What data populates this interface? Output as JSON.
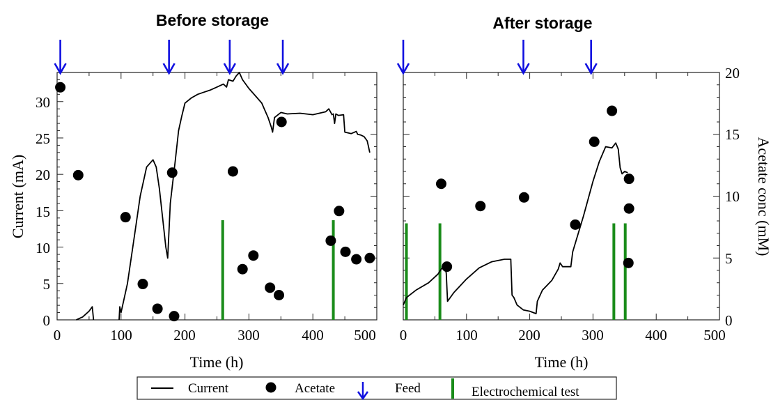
{
  "chart_data": [
    {
      "type": "line",
      "title": "Before storage",
      "xlabel": "Time (h)",
      "ylabel": "Current (mA)",
      "xlim": [
        0,
        500
      ],
      "ylim": [
        0,
        34
      ],
      "y2lim": [
        0,
        20
      ],
      "x_ticks": [
        "0",
        "100",
        "200",
        "300",
        "400",
        "500"
      ],
      "y_ticks": [
        "0",
        "5",
        "10",
        "15",
        "20",
        "25",
        "30"
      ],
      "series": [
        {
          "name": "Current",
          "kind": "line",
          "axis": "left",
          "color": "#000000",
          "segments": [
            [
              [
                30,
                0
              ],
              [
                40,
                0.4
              ],
              [
                50,
                1.2
              ],
              [
                55,
                1.8
              ],
              [
                57,
                0
              ]
            ],
            [
              [
                97,
                0
              ],
              [
                98,
                1.8
              ],
              [
                100,
                1
              ],
              [
                110,
                5
              ],
              [
                120,
                11
              ],
              [
                130,
                17
              ],
              [
                140,
                21
              ],
              [
                150,
                22
              ],
              [
                155,
                21
              ],
              [
                160,
                18
              ],
              [
                165,
                14
              ],
              [
                170,
                10
              ],
              [
                173,
                8.5
              ],
              [
                177,
                16
              ],
              [
                185,
                22
              ],
              [
                190,
                26
              ],
              [
                195,
                28
              ],
              [
                200,
                29.8
              ],
              [
                210,
                30.5
              ],
              [
                220,
                31
              ],
              [
                230,
                31.3
              ],
              [
                240,
                31.6
              ],
              [
                250,
                32
              ],
              [
                260,
                32.4
              ],
              [
                265,
                32
              ],
              [
                268,
                33
              ],
              [
                275,
                32.8
              ],
              [
                280,
                33.5
              ],
              [
                285,
                34
              ],
              [
                290,
                33
              ],
              [
                300,
                31.8
              ],
              [
                310,
                30.8
              ],
              [
                320,
                29.8
              ],
              [
                330,
                27.8
              ],
              [
                335,
                26.5
              ],
              [
                337,
                25.8
              ],
              [
                340,
                27.8
              ],
              [
                350,
                28.5
              ],
              [
                360,
                28.3
              ],
              [
                380,
                28.4
              ],
              [
                400,
                28.2
              ],
              [
                420,
                28.6
              ],
              [
                425,
                29
              ],
              [
                430,
                28.2
              ],
              [
                432,
                28.3
              ],
              [
                434,
                27
              ],
              [
                436,
                28.3
              ],
              [
                440,
                28.1
              ],
              [
                448,
                28.2
              ],
              [
                450,
                25.8
              ],
              [
                460,
                25.6
              ],
              [
                468,
                25.9
              ],
              [
                470,
                25.5
              ],
              [
                475,
                25.4
              ],
              [
                480,
                25.2
              ],
              [
                485,
                24.6
              ],
              [
                487,
                23.8
              ],
              [
                489,
                23
              ]
            ]
          ]
        },
        {
          "name": "Acetate",
          "kind": "scatter",
          "axis": "right",
          "color": "#000000",
          "points": [
            [
              5,
              18.8
            ],
            [
              33,
              11.7
            ],
            [
              107,
              8.3
            ],
            [
              134,
              2.9
            ],
            [
              157,
              0.9
            ],
            [
              183,
              0.3
            ],
            [
              180,
              11.9
            ],
            [
              275,
              12
            ],
            [
              290,
              4.1
            ],
            [
              307,
              5.2
            ],
            [
              333,
              2.6
            ],
            [
              347,
              2
            ],
            [
              351,
              16
            ],
            [
              428,
              6.4
            ],
            [
              441,
              8.8
            ],
            [
              451,
              5.5
            ],
            [
              468,
              4.9
            ],
            [
              489,
              5
            ]
          ]
        },
        {
          "name": "Feed",
          "kind": "arrow",
          "color": "#1010e0",
          "x": [
            5,
            175,
            270,
            353
          ]
        },
        {
          "name": "Electrochemical test",
          "kind": "vline",
          "color": "#1a8c1a",
          "x": [
            259,
            432
          ],
          "height": 13.7
        }
      ]
    },
    {
      "type": "line",
      "title": "After storage",
      "xlabel": "Time (h)",
      "ylabel": "Acetate conc (mM)",
      "xlim": [
        0,
        500
      ],
      "ylim": [
        0,
        20
      ],
      "y2lim": [
        0,
        20
      ],
      "x_ticks": [
        "0",
        "100",
        "200",
        "300",
        "400",
        "500"
      ],
      "y2_ticks": [
        "0",
        "5",
        "10",
        "15",
        "20"
      ],
      "series": [
        {
          "name": "Current",
          "kind": "line",
          "axis": "right",
          "color": "#000000",
          "segments": [
            [
              [
                0,
                1.2
              ],
              [
                5,
                1.8
              ],
              [
                20,
                2.4
              ],
              [
                40,
                3
              ],
              [
                55,
                3.7
              ],
              [
                60,
                4.1
              ],
              [
                65,
                4.4
              ],
              [
                68,
                3.8
              ],
              [
                70,
                1.5
              ],
              [
                80,
                2.2
              ],
              [
                100,
                3.3
              ],
              [
                120,
                4.2
              ],
              [
                140,
                4.7
              ],
              [
                160,
                4.9
              ],
              [
                170,
                4.9
              ],
              [
                172,
                2
              ],
              [
                175,
                1.8
              ],
              [
                180,
                1.2
              ],
              [
                190,
                0.8
              ],
              [
                200,
                0.7
              ],
              [
                210,
                0.5
              ],
              [
                212,
                1.5
              ],
              [
                220,
                2.4
              ],
              [
                235,
                3.2
              ],
              [
                245,
                4.1
              ],
              [
                248,
                4.6
              ],
              [
                252,
                4.3
              ],
              [
                265,
                4.3
              ],
              [
                268,
                5.5
              ],
              [
                285,
                8.4
              ],
              [
                300,
                11.2
              ],
              [
                310,
                12.8
              ],
              [
                320,
                14
              ],
              [
                330,
                13.9
              ],
              [
                336,
                14.3
              ],
              [
                340,
                13.8
              ],
              [
                343,
                12.3
              ],
              [
                346,
                11.8
              ],
              [
                350,
                12
              ],
              [
                355,
                11.9
              ]
            ]
          ]
        },
        {
          "name": "Acetate",
          "kind": "scatter",
          "axis": "right",
          "color": "#000000",
          "points": [
            [
              60,
              11
            ],
            [
              69,
              4.3
            ],
            [
              122,
              9.2
            ],
            [
              191,
              9.9
            ],
            [
              272,
              7.7
            ],
            [
              302,
              14.4
            ],
            [
              330,
              16.9
            ],
            [
              357,
              11.4
            ],
            [
              357,
              9
            ],
            [
              356,
              4.6
            ]
          ]
        },
        {
          "name": "Feed",
          "kind": "arrow",
          "color": "#1010e0",
          "x": [
            0,
            190,
            297
          ]
        },
        {
          "name": "Electrochemical test",
          "kind": "vline",
          "color": "#1a8c1a",
          "x": [
            5,
            58,
            333,
            351
          ],
          "height": 7.8
        }
      ]
    }
  ],
  "legend": {
    "placement": "bottom-center",
    "items": [
      {
        "label": "Current",
        "symbol": "line",
        "color": "#000000"
      },
      {
        "label": "Acetate",
        "symbol": "dot",
        "color": "#000000"
      },
      {
        "label": "Feed",
        "symbol": "arrow",
        "color": "#1010e0"
      },
      {
        "label": "Electrochemical test",
        "symbol": "vline",
        "color": "#1a8c1a"
      }
    ]
  }
}
